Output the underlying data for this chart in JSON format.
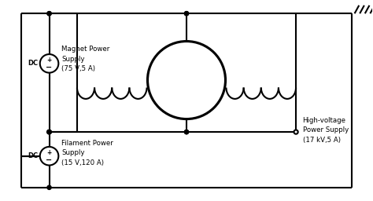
{
  "bg_color": "#ffffff",
  "line_color": "#000000",
  "line_width": 1.5,
  "magnet_label": "Magnet Power\nSupply\n(75 V,5 A)",
  "filament_label": "Filament Power\nSupply\n(15 V,120 A)",
  "hv_label": "High-voltage\nPower Supply\n(17 kV,5 A)",
  "dc_label": "DC",
  "dot_r": 0.055,
  "open_dot_r": 0.055
}
